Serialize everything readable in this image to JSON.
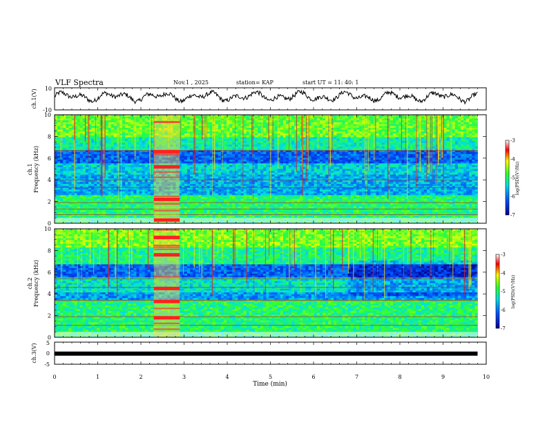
{
  "header": {
    "title": "VLF Spectra",
    "date": "Nov.1 , 2025",
    "station": "station= KAP",
    "start_ut": "start UT = 11: 40: 1"
  },
  "chart_data": [
    {
      "type": "line",
      "name": "ch1-waveform",
      "ylabel": "ch.1(V)",
      "ylim": [
        -10,
        10
      ],
      "yticks": [
        "10",
        "-10"
      ],
      "xlim": [
        0,
        10
      ],
      "data_end_min": 9.8,
      "description_series": "noisy waveform oscillating around +2 V"
    },
    {
      "type": "heatmap",
      "name": "ch1-spectrogram",
      "ylabel": "ch.1 Frequency (kHz)",
      "ylim": [
        0,
        10
      ],
      "yticks": [
        "0",
        "2",
        "4",
        "6",
        "8",
        "10"
      ],
      "xlim": [
        0,
        10
      ],
      "data_end_min": 9.8,
      "colorbar": {
        "label": "log(PSD)(V²/Hz)",
        "range": [
          -7,
          -3
        ],
        "ticks": [
          "-3",
          "-4",
          "-5",
          "-6",
          "-7"
        ]
      },
      "interference_interval_min": [
        2.3,
        2.9
      ],
      "interference_lines_khz": [
        0.3,
        2.2,
        5.2,
        6.6
      ]
    },
    {
      "type": "heatmap",
      "name": "ch2-spectrogram",
      "ylabel": "ch.2 Frequency (kHz)",
      "ylim": [
        0,
        10
      ],
      "yticks": [
        "0",
        "2",
        "4",
        "6",
        "8",
        "10"
      ],
      "xlim": [
        0,
        10
      ],
      "data_end_min": 9.8,
      "colorbar": {
        "label": "log(PSD)(V²/Hz)",
        "range": [
          -7,
          -3
        ],
        "ticks": [
          "-3",
          "-4",
          "-5",
          "-6",
          "-7"
        ]
      },
      "interference_interval_min": [
        2.3,
        2.9
      ],
      "interference_lines_khz": [
        1.8,
        3.3,
        4.5,
        7.6,
        9.2
      ]
    },
    {
      "type": "line",
      "name": "ch3-waveform",
      "ylabel": "ch.3(V)",
      "ylim": [
        -5,
        5
      ],
      "yticks": [
        "5",
        "0",
        "-5"
      ],
      "xlim": [
        0,
        10
      ],
      "data_end_min": 9.8,
      "constant_value": -0.2
    }
  ],
  "xaxis": {
    "label": "Time (min)",
    "ticks": [
      "0",
      "1",
      "2",
      "3",
      "4",
      "5",
      "6",
      "7",
      "8",
      "9",
      "10"
    ]
  },
  "colors": {
    "axis": "#000000",
    "background": "#ffffff"
  }
}
